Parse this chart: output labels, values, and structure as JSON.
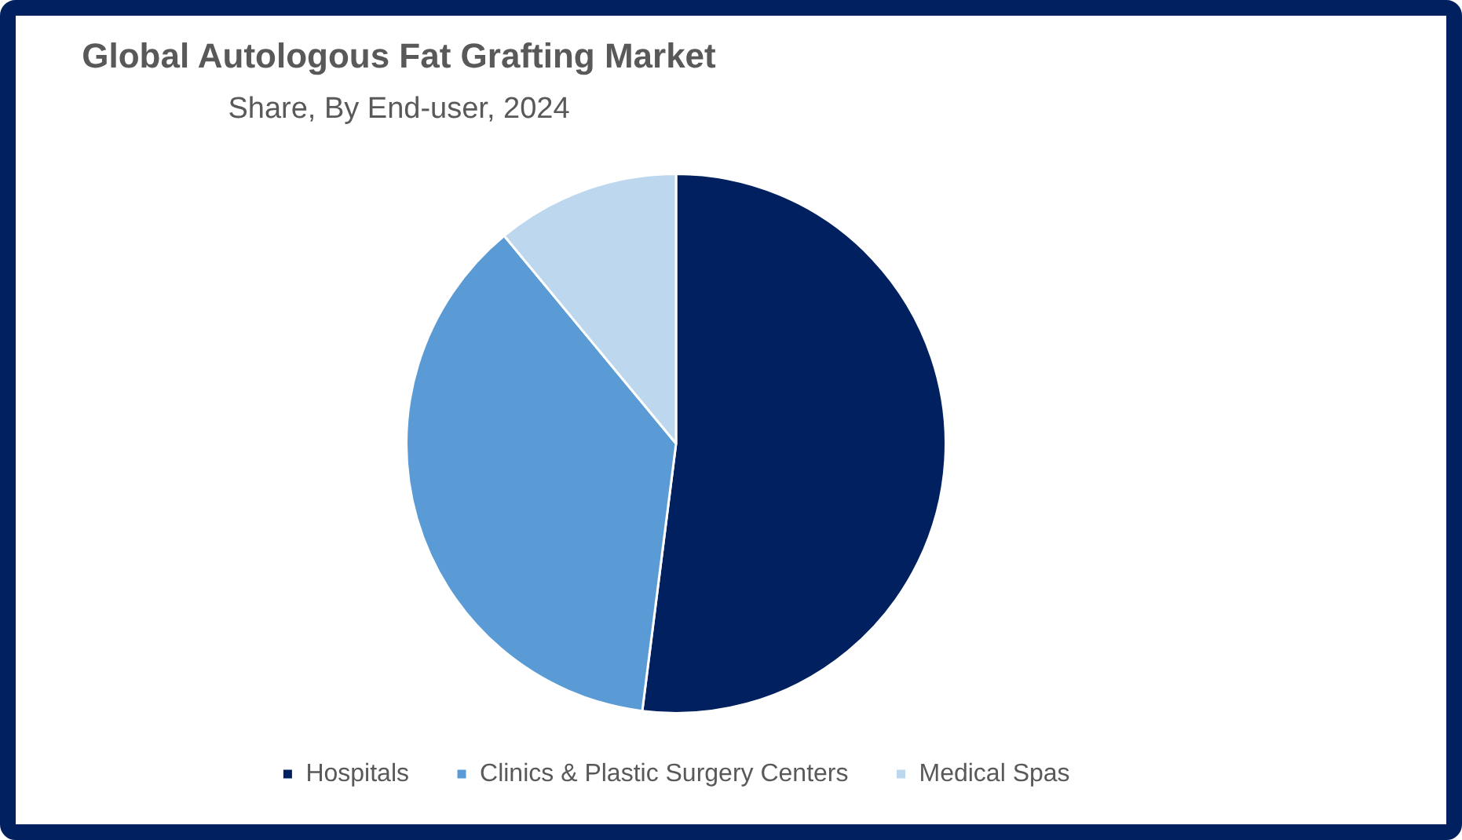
{
  "chart_data": {
    "type": "pie",
    "title": "Global Autologous Fat Grafting Market",
    "subtitle": "Share, By End-user, 2024",
    "categories": [
      "Hospitals",
      "Clinics & Plastic Surgery Centers",
      "Medical Spas"
    ],
    "values": [
      52,
      37,
      11
    ],
    "colors": [
      "#002060",
      "#5b9bd5",
      "#bdd7ee"
    ],
    "legend": "bottom"
  }
}
